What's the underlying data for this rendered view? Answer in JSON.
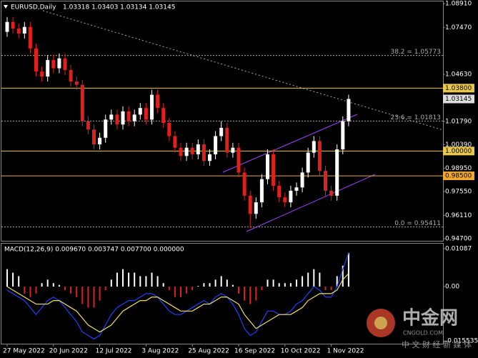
{
  "chart_data": {
    "type": "candlestick",
    "title": "EURUSD,Daily",
    "ohlc_label": "1.03318 1.03403 1.03134 1.03145",
    "categories": [
      "27 May 2022",
      null,
      null,
      null,
      null,
      null,
      null,
      null,
      "20 Jun 2022",
      null,
      null,
      null,
      null,
      null,
      null,
      null,
      "12 Jul 2022",
      null,
      null,
      null,
      null,
      null,
      null,
      null,
      "3 Aug 2022",
      null,
      null,
      null,
      null,
      null,
      null,
      null,
      "25 Aug 2022",
      null,
      null,
      null,
      null,
      null,
      null,
      null,
      "16 Sep 2022",
      null,
      null,
      null,
      null,
      null,
      null,
      null,
      "10 Oct 2022",
      null,
      null,
      null,
      null,
      null,
      null,
      null,
      "1 Nov 2022",
      null,
      null,
      null
    ],
    "open": [
      1.072,
      1.078,
      1.074,
      1.071,
      1.075,
      1.062,
      1.048,
      1.045,
      1.055,
      1.05,
      1.056,
      1.049,
      1.042,
      1.04,
      1.018,
      1.013,
      1.004,
      1.008,
      1.019,
      1.022,
      1.016,
      1.024,
      1.018,
      1.022,
      1.026,
      1.019,
      1.034,
      1.026,
      1.017,
      1.009,
      1.002,
      0.997,
      1.002,
      0.998,
      1.004,
      0.994,
      0.998,
      1.009,
      1.014,
      0.999,
      1.002,
      0.987,
      0.973,
      0.962,
      0.969,
      0.983,
      0.998,
      0.979,
      0.972,
      0.969,
      0.976,
      0.978,
      0.987,
      0.999,
      1.006,
      0.988,
      0.976,
      0.973,
      1.001,
      1.018
    ],
    "high": [
      1.081,
      1.081,
      1.077,
      1.078,
      1.078,
      1.065,
      1.051,
      1.058,
      1.058,
      1.059,
      1.059,
      1.052,
      1.045,
      1.043,
      1.021,
      1.016,
      1.011,
      1.022,
      1.025,
      1.025,
      1.027,
      1.027,
      1.025,
      1.029,
      1.029,
      1.037,
      1.037,
      1.029,
      1.02,
      1.012,
      1.005,
      1.005,
      1.005,
      1.007,
      1.007,
      1.001,
      1.012,
      1.018,
      1.017,
      1.005,
      1.005,
      0.99,
      0.976,
      0.972,
      0.986,
      1.001,
      1.001,
      0.982,
      0.975,
      0.979,
      0.981,
      0.99,
      1.002,
      1.009,
      1.009,
      0.991,
      0.979,
      1.004,
      1.021,
      1.03403
    ],
    "low": [
      1.069,
      1.071,
      1.068,
      1.068,
      1.059,
      1.045,
      1.042,
      1.042,
      1.047,
      1.047,
      1.046,
      1.039,
      1.037,
      1.015,
      1.01,
      1.001,
      1.001,
      1.005,
      1.016,
      1.013,
      1.013,
      1.015,
      1.015,
      1.019,
      1.016,
      1.016,
      1.023,
      1.014,
      1.006,
      0.999,
      0.994,
      0.994,
      0.995,
      0.995,
      0.991,
      0.991,
      0.995,
      1.006,
      0.996,
      0.996,
      0.984,
      0.97,
      0.9535,
      0.959,
      0.966,
      0.98,
      0.976,
      0.969,
      0.966,
      0.966,
      0.973,
      0.975,
      0.984,
      0.996,
      0.985,
      0.973,
      0.97,
      0.97,
      0.998,
      1.015
    ],
    "close": [
      1.078,
      1.074,
      1.071,
      1.075,
      1.062,
      1.048,
      1.045,
      1.055,
      1.05,
      1.056,
      1.049,
      1.042,
      1.04,
      1.018,
      1.013,
      1.004,
      1.008,
      1.019,
      1.022,
      1.016,
      1.024,
      1.018,
      1.022,
      1.026,
      1.019,
      1.034,
      1.026,
      1.017,
      1.009,
      1.002,
      0.997,
      1.002,
      0.998,
      1.004,
      0.994,
      0.998,
      1.009,
      1.014,
      0.999,
      1.002,
      0.987,
      0.973,
      0.962,
      0.969,
      0.983,
      0.998,
      0.979,
      0.972,
      0.969,
      0.976,
      0.978,
      0.987,
      0.999,
      1.006,
      0.988,
      0.976,
      0.973,
      1.001,
      1.018,
      1.03145
    ],
    "up_color": "#ffffff",
    "down_color": "#e0201a",
    "ylim": [
      0.9453,
      1.0904
    ],
    "yticks": [
      {
        "value": 1.0891,
        "label": "1.08910"
      },
      {
        "value": 1.0747,
        "label": "1.07470"
      },
      {
        "value": 1.0463,
        "label": "1.04630"
      },
      {
        "value": 1.0179,
        "label": "1.01790"
      },
      {
        "value": 1.0039,
        "label": "1.00390"
      },
      {
        "value": 0.9895,
        "label": "0.98950"
      },
      {
        "value": 0.9755,
        "label": "0.97550"
      },
      {
        "value": 0.9611,
        "label": "0.96110"
      },
      {
        "value": 0.947,
        "label": "0.94700"
      }
    ],
    "levels": [
      {
        "value": 1.038,
        "label": "1.03800",
        "color": "#e8c84a"
      },
      {
        "value": 1.0,
        "label": "1.00000",
        "color": "#e8c84a"
      },
      {
        "value": 0.985,
        "label": "0.98500",
        "color": "#f0a830"
      }
    ],
    "current_price": {
      "value": 1.03145,
      "label": "1.03145"
    },
    "fibonacci": [
      {
        "value": 1.05773,
        "label": "38.2 = 1.05773"
      },
      {
        "value": 1.01813,
        "label": "23.6 = 1.01813"
      },
      {
        "value": 0.95411,
        "label": "0.0 = 0.95411"
      }
    ],
    "macd": {
      "title": "MACD(12,26,9) 0.009670 0.003747 0.007700 0.000000",
      "ylim": [
        -0.01635,
        0.0123
      ],
      "yticks": [
        {
          "value": 0.01087,
          "label": "0.01087"
        },
        {
          "value": 0,
          "label": "0.00"
        },
        {
          "value": -0.015535,
          "label": "-0.015535"
        }
      ],
      "histogram": [
        0.005,
        0.004,
        0.003,
        -0.002,
        -0.003,
        -0.002,
        0.001,
        0.002,
        0.001,
        0.0005,
        -0.001,
        -0.002,
        -0.003,
        -0.005,
        -0.006,
        -0.006,
        -0.004,
        -0.001,
        0.002,
        0.004,
        0.005,
        0.004,
        0.004,
        0.003,
        0.003,
        0.004,
        0.003,
        0.001,
        -0.001,
        -0.003,
        -0.003,
        -0.002,
        -0.001,
        0.0002,
        0.001,
        0.001,
        0.002,
        0.003,
        0.002,
        0.0005,
        -0.002,
        -0.004,
        -0.005,
        -0.004,
        -0.001,
        0.002,
        0.002,
        0.001,
        0.001,
        0.001,
        0.002,
        0.003,
        0.004,
        0.005,
        0.004,
        -0.001,
        -0.001,
        0.003,
        0.006,
        0.00967
      ],
      "up_color": "#ffffff",
      "down_color": "#e0201a",
      "series": [
        {
          "color": "#2040ff",
          "values": [
            -0.001,
            -0.002,
            -0.003,
            -0.004,
            -0.006,
            -0.008,
            -0.006,
            -0.004,
            -0.003,
            -0.004,
            -0.006,
            -0.008,
            -0.01,
            -0.013,
            -0.014,
            -0.015,
            -0.014,
            -0.011,
            -0.008,
            -0.006,
            -0.005,
            -0.004,
            -0.004,
            -0.003,
            -0.002,
            -0.002,
            -0.003,
            -0.005,
            -0.007,
            -0.008,
            -0.008,
            -0.007,
            -0.006,
            -0.005,
            -0.004,
            -0.005,
            -0.003,
            -0.002,
            -0.003,
            -0.005,
            -0.008,
            -0.012,
            -0.014,
            -0.013,
            -0.01,
            -0.007,
            -0.007,
            -0.008,
            -0.008,
            -0.007,
            -0.005,
            -0.004,
            -0.002,
            0.0,
            -0.001,
            -0.003,
            -0.003,
            0.0,
            0.005,
            0.00967
          ]
        },
        {
          "color": "#f0e060",
          "values": [
            0.0,
            -0.001,
            -0.002,
            -0.003,
            -0.004,
            -0.005,
            -0.005,
            -0.005,
            -0.004,
            -0.004,
            -0.005,
            -0.006,
            -0.007,
            -0.009,
            -0.011,
            -0.012,
            -0.013,
            -0.012,
            -0.011,
            -0.009,
            -0.007,
            -0.006,
            -0.005,
            -0.004,
            -0.004,
            -0.003,
            -0.003,
            -0.004,
            -0.005,
            -0.006,
            -0.007,
            -0.007,
            -0.007,
            -0.006,
            -0.005,
            -0.005,
            -0.004,
            -0.003,
            -0.003,
            -0.004,
            -0.005,
            -0.008,
            -0.01,
            -0.012,
            -0.011,
            -0.01,
            -0.009,
            -0.008,
            -0.008,
            -0.008,
            -0.007,
            -0.006,
            -0.004,
            -0.003,
            -0.002,
            -0.002,
            -0.002,
            -0.001,
            0.002,
            0.003747
          ]
        }
      ]
    },
    "watermark": {
      "name": "中金网",
      "site": "CNGOLD.COM",
      "slogan": "中 文 财 经 新 媒 体"
    }
  }
}
